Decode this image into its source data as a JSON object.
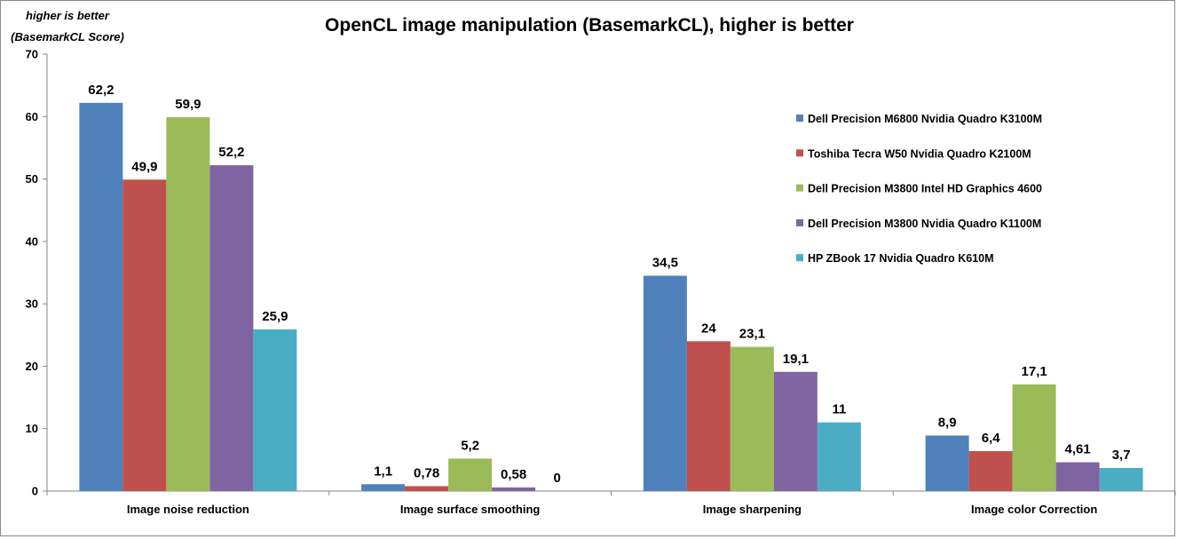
{
  "chart_data": {
    "type": "bar",
    "title": "OpenCL image manipulation (BasemarkCL), higher is better",
    "ylabel_lines": [
      "higher is better",
      "(BasemarkCL Score)"
    ],
    "xlabel": "",
    "ylim": [
      0,
      70
    ],
    "yticks": [
      0,
      10,
      20,
      30,
      40,
      50,
      60,
      70
    ],
    "grid": false,
    "legend_position": "right",
    "categories": [
      "Image noise reduction",
      "Image surface smoothing",
      "Image sharpening",
      "Image color Correction"
    ],
    "series": [
      {
        "name": "Dell Precision M6800 Nvidia Quadro K3100M",
        "color": "#4F81BD",
        "values": [
          62.2,
          1.1,
          34.5,
          8.9
        ],
        "labels": [
          "62,2",
          "1,1",
          "34,5",
          "8,9"
        ]
      },
      {
        "name": "Toshiba Tecra W50 Nvidia Quadro K2100M",
        "color": "#C0504D",
        "values": [
          49.9,
          0.78,
          24,
          6.4
        ],
        "labels": [
          "49,9",
          "0,78",
          "24",
          "6,4"
        ]
      },
      {
        "name": "Dell Precision M3800 Intel HD Graphics 4600",
        "color": "#9BBB59",
        "values": [
          59.9,
          5.2,
          23.1,
          17.1
        ],
        "labels": [
          "59,9",
          "5,2",
          "23,1",
          "17,1"
        ]
      },
      {
        "name": "Dell Precision M3800 Nvidia Quadro K1100M",
        "color": "#8064A2",
        "values": [
          52.2,
          0.58,
          19.1,
          4.61
        ],
        "labels": [
          "52,2",
          "0,58",
          "19,1",
          "4,61"
        ]
      },
      {
        "name": "HP ZBook 17 Nvidia Quadro K610M",
        "color": "#4BACC6",
        "values": [
          25.9,
          0,
          11,
          3.7
        ],
        "labels": [
          "25,9",
          "0",
          "11",
          "3,7"
        ]
      }
    ]
  }
}
